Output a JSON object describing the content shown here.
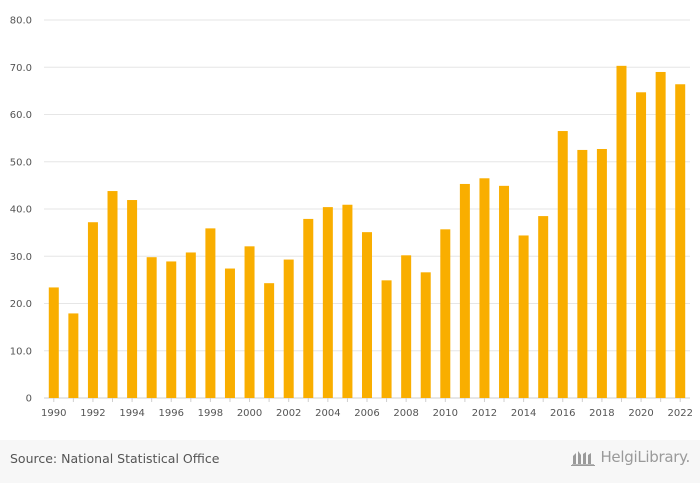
{
  "chart_data": {
    "type": "bar",
    "categories": [
      "1990",
      "1991",
      "1992",
      "1993",
      "1994",
      "1995",
      "1996",
      "1997",
      "1998",
      "1999",
      "2000",
      "2001",
      "2002",
      "2003",
      "2004",
      "2005",
      "2006",
      "2007",
      "2008",
      "2009",
      "2010",
      "2011",
      "2012",
      "2013",
      "2014",
      "2015",
      "2016",
      "2017",
      "2018",
      "2019",
      "2020",
      "2021",
      "2022"
    ],
    "values": [
      23.4,
      17.9,
      37.2,
      43.8,
      41.9,
      29.8,
      28.9,
      30.8,
      35.9,
      27.4,
      32.1,
      24.3,
      29.3,
      37.9,
      40.4,
      40.9,
      35.1,
      24.9,
      30.2,
      26.6,
      35.7,
      45.3,
      46.5,
      44.9,
      34.4,
      38.5,
      56.5,
      52.5,
      52.7,
      70.3,
      64.7,
      69.0,
      66.4
    ],
    "x_tick_labels": [
      "1990",
      "1992",
      "1994",
      "1996",
      "1998",
      "2000",
      "2002",
      "2004",
      "2006",
      "2008",
      "2010",
      "2012",
      "2014",
      "2016",
      "2018",
      "2020",
      "2022"
    ],
    "y_tick_labels": [
      "0",
      "10.0",
      "20.0",
      "30.0",
      "40.0",
      "50.0",
      "60.0",
      "70.0",
      "80.0"
    ],
    "ylim": [
      0,
      80
    ],
    "title": "",
    "xlabel": "",
    "ylabel": "",
    "grid": true,
    "bar_color": "#f9ae00",
    "grid_color": "#e6e6e6"
  },
  "footer": {
    "source_text": "Source: National Statistical Office",
    "logo_text": "HelgiLibrary.",
    "logo_icon": "library-building-icon"
  }
}
